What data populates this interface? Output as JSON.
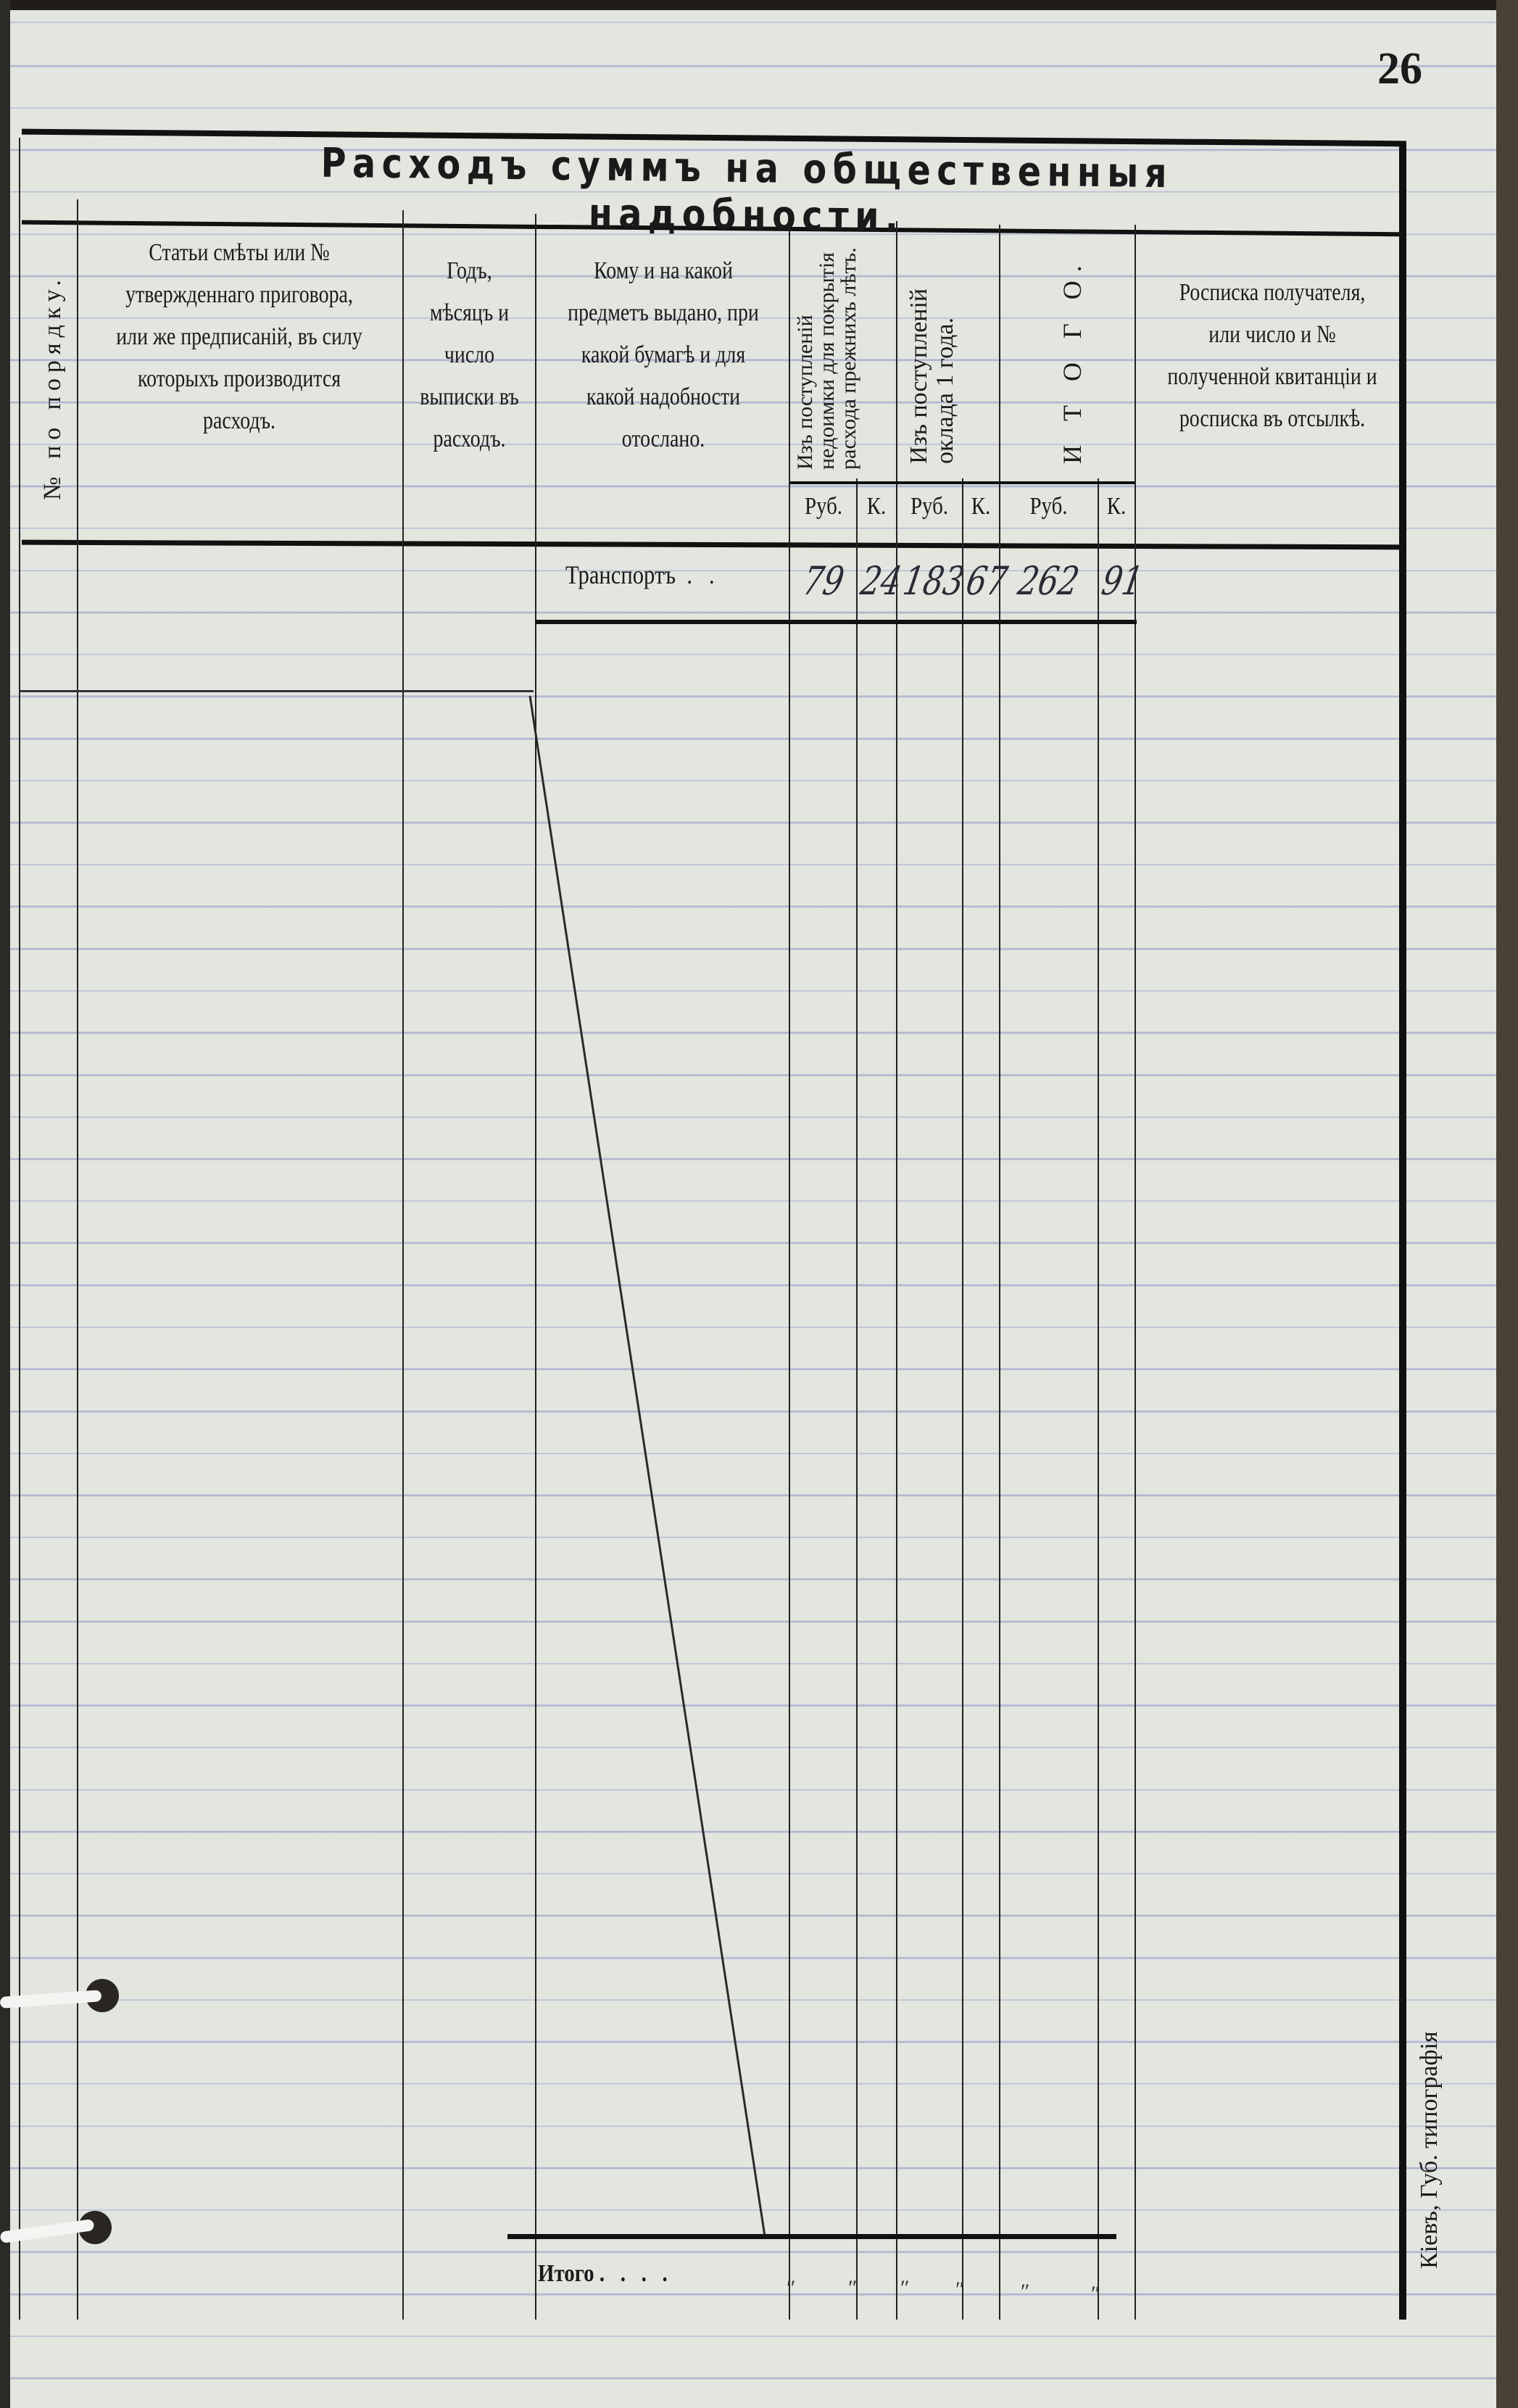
{
  "page_number": "26",
  "title": "Расходъ суммъ на общественныя надобности.",
  "columns": [
    {
      "label": "№ по порядку."
    },
    {
      "label": "Статьи смѣты или № утвержденнаго приговора, или же предписаній, въ силу которыхъ производится расходъ."
    },
    {
      "label": "Годъ, мѣсяцъ и число выписки въ расходъ."
    },
    {
      "label": "Кому и на какой предметъ выдано, при какой бумагѣ и для какой надобности отослано."
    },
    {
      "label": "Изъ поступленій недоимки для покрытія расхода прежнихъ лѣтъ."
    },
    {
      "label": "Изъ поступленій оклада 1 года."
    },
    {
      "label": "И Т О Г О."
    },
    {
      "label": "Росписка получателя, или число и № полученной квитанціи и росписка въ отсылкѣ."
    }
  ],
  "subheaders": [
    "Руб.",
    "К.",
    "Руб.",
    "К.",
    "Руб.",
    "К."
  ],
  "transport_row": {
    "label": "Транспортъ",
    "values": [
      "79",
      "24",
      "183",
      "67",
      "262",
      "91"
    ]
  },
  "total_row": {
    "label": "Итого",
    "values": [
      "″",
      "″",
      "″",
      "″",
      "″",
      "″"
    ]
  },
  "printer_imprint": "Кіевъ, Губ. типографія"
}
